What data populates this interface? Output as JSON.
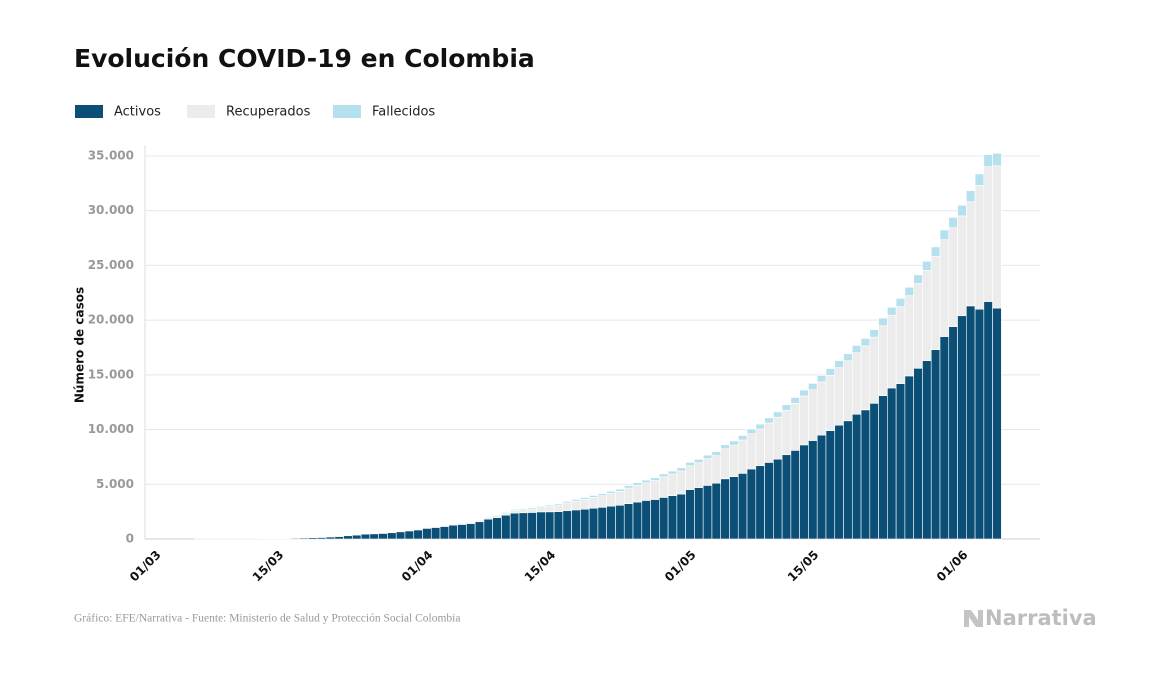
{
  "chart_data": {
    "type": "stacked_bar",
    "title": "Evolución COVID-19 en Colombia",
    "ylabel": "Número de casos",
    "source": "Gráfico: EFE/Narrativa - Fuente: Ministerio de Salud y Protección Social Colombia",
    "brand": "Narrativa",
    "categories": [
      "01/03",
      null,
      null,
      null,
      null,
      null,
      null,
      null,
      null,
      null,
      null,
      null,
      null,
      null,
      "15/03",
      null,
      null,
      null,
      null,
      null,
      null,
      null,
      null,
      null,
      null,
      null,
      null,
      null,
      null,
      null,
      null,
      "01/04",
      null,
      null,
      null,
      null,
      null,
      null,
      null,
      null,
      null,
      null,
      null,
      null,
      null,
      "15/04",
      null,
      null,
      null,
      null,
      null,
      null,
      null,
      null,
      null,
      null,
      null,
      null,
      null,
      null,
      null,
      "01/05",
      null,
      null,
      null,
      null,
      null,
      null,
      null,
      null,
      null,
      null,
      null,
      null,
      null,
      "15/05",
      null,
      null,
      null,
      null,
      null,
      null,
      null,
      null,
      null,
      null,
      null,
      null,
      null,
      null,
      null,
      null,
      "01/06",
      null,
      null,
      null,
      null
    ],
    "series": [
      {
        "name": "Activos",
        "color": "#0b4f77",
        "values": [
          0,
          0,
          0,
          0,
          0,
          1,
          1,
          1,
          3,
          3,
          9,
          13,
          16,
          24,
          44,
          56,
          74,
          101,
          127,
          144,
          193,
          227,
          298,
          368,
          456,
          475,
          512,
          573,
          660,
          741,
          832,
          975,
          1055,
          1145,
          1271,
          1330,
          1411,
          1579,
          1818,
          1957,
          2174,
          2370,
          2398,
          2427,
          2479,
          2484,
          2509,
          2584,
          2659,
          2721,
          2811,
          2898,
          3004,
          3085,
          3230,
          3378,
          3525,
          3613,
          3802,
          3958,
          4109,
          4520,
          4700,
          4900,
          5100,
          5500,
          5700,
          6000,
          6400,
          6700,
          7000,
          7300,
          7700,
          8100,
          8600,
          9000,
          9500,
          9900,
          10400,
          10800,
          11400,
          11800,
          12400,
          13100,
          13800,
          14200,
          14900,
          15600,
          16300,
          17300,
          18500,
          19400,
          20400,
          21300,
          21000,
          21700,
          21100
        ]
      },
      {
        "name": "Recuperados",
        "color": "#ececec",
        "values": [
          0,
          0,
          0,
          0,
          0,
          0,
          0,
          0,
          0,
          0,
          0,
          0,
          0,
          0,
          1,
          1,
          1,
          1,
          1,
          1,
          2,
          2,
          4,
          6,
          8,
          10,
          21,
          25,
          30,
          40,
          57,
          65,
          80,
          90,
          100,
          109,
          118,
          146,
          167,
          189,
          219,
          239,
          270,
          311,
          383,
          494,
          593,
          711,
          809,
          906,
          987,
          1062,
          1156,
          1270,
          1426,
          1531,
          1610,
          1731,
          1878,
          1971,
          2105,
          2173,
          2266,
          2443,
          2515,
          2749,
          2880,
          3049,
          3223,
          3348,
          3598,
          3830,
          4061,
          4298,
          4461,
          4641,
          4847,
          5061,
          5256,
          5483,
          5625,
          5848,
          6046,
          6383,
          6648,
          7033,
          7327,
          7738,
          8244,
          8535,
          8846,
          9044,
          9118,
          9524,
          11300,
          12320,
          12995
        ]
      },
      {
        "name": "Fallecidos",
        "color": "#b5e1ef",
        "values": [
          0,
          0,
          0,
          0,
          0,
          0,
          0,
          0,
          0,
          0,
          0,
          0,
          0,
          0,
          0,
          0,
          0,
          0,
          0,
          0,
          1,
          2,
          4,
          4,
          6,
          6,
          6,
          10,
          12,
          17,
          17,
          25,
          26,
          32,
          35,
          46,
          50,
          55,
          69,
          77,
          80,
          100,
          108,
          114,
          117,
          127,
          131,
          144,
          153,
          165,
          179,
          189,
          196,
          206,
          225,
          233,
          244,
          253,
          269,
          278,
          293,
          313,
          319,
          325,
          358,
          364,
          379,
          407,
          428,
          447,
          465,
          483,
          511,
          532,
          549,
          575,
          592,
          613,
          639,
          652,
          662,
          682,
          685,
          694,
          727,
          748,
          776,
          803,
          822,
          853,
          890,
          939,
          975,
          1009,
          1054,
          1100,
          1145
        ]
      }
    ],
    "ylim": [
      0,
      36000
    ],
    "yticks": [
      0,
      {
        "value": 5000,
        "label": "5.000"
      },
      {
        "value": 10000,
        "label": "10.000"
      },
      {
        "value": 15000,
        "label": "15.000"
      },
      {
        "value": 20000,
        "label": "20.000"
      },
      {
        "value": 25000,
        "label": "25.000"
      },
      {
        "value": 30000,
        "label": "30.000"
      },
      {
        "value": 35000,
        "label": "35.000"
      }
    ],
    "grid": true
  }
}
